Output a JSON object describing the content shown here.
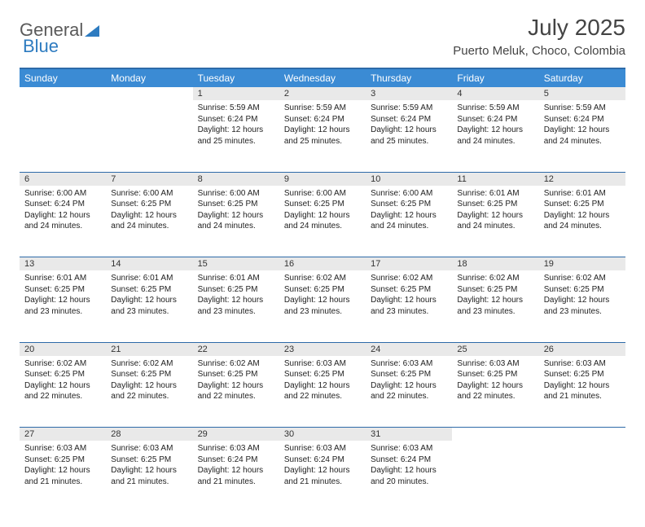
{
  "logo": {
    "text_gray": "General",
    "text_blue": "Blue"
  },
  "title": "July 2025",
  "location": "Puerto Meluk, Choco, Colombia",
  "colors": {
    "header_bg": "#3b8bd4",
    "header_border": "#2d6aa8",
    "daynum_bg": "#e9e9e9",
    "text": "#222222",
    "logo_gray": "#5a5a5a",
    "logo_blue": "#2d7bc0"
  },
  "weekdays": [
    "Sunday",
    "Monday",
    "Tuesday",
    "Wednesday",
    "Thursday",
    "Friday",
    "Saturday"
  ],
  "weeks": [
    [
      null,
      null,
      {
        "n": "1",
        "sunrise": "5:59 AM",
        "sunset": "6:24 PM",
        "daylight": "12 hours and 25 minutes."
      },
      {
        "n": "2",
        "sunrise": "5:59 AM",
        "sunset": "6:24 PM",
        "daylight": "12 hours and 25 minutes."
      },
      {
        "n": "3",
        "sunrise": "5:59 AM",
        "sunset": "6:24 PM",
        "daylight": "12 hours and 25 minutes."
      },
      {
        "n": "4",
        "sunrise": "5:59 AM",
        "sunset": "6:24 PM",
        "daylight": "12 hours and 24 minutes."
      },
      {
        "n": "5",
        "sunrise": "5:59 AM",
        "sunset": "6:24 PM",
        "daylight": "12 hours and 24 minutes."
      }
    ],
    [
      {
        "n": "6",
        "sunrise": "6:00 AM",
        "sunset": "6:24 PM",
        "daylight": "12 hours and 24 minutes."
      },
      {
        "n": "7",
        "sunrise": "6:00 AM",
        "sunset": "6:25 PM",
        "daylight": "12 hours and 24 minutes."
      },
      {
        "n": "8",
        "sunrise": "6:00 AM",
        "sunset": "6:25 PM",
        "daylight": "12 hours and 24 minutes."
      },
      {
        "n": "9",
        "sunrise": "6:00 AM",
        "sunset": "6:25 PM",
        "daylight": "12 hours and 24 minutes."
      },
      {
        "n": "10",
        "sunrise": "6:00 AM",
        "sunset": "6:25 PM",
        "daylight": "12 hours and 24 minutes."
      },
      {
        "n": "11",
        "sunrise": "6:01 AM",
        "sunset": "6:25 PM",
        "daylight": "12 hours and 24 minutes."
      },
      {
        "n": "12",
        "sunrise": "6:01 AM",
        "sunset": "6:25 PM",
        "daylight": "12 hours and 24 minutes."
      }
    ],
    [
      {
        "n": "13",
        "sunrise": "6:01 AM",
        "sunset": "6:25 PM",
        "daylight": "12 hours and 23 minutes."
      },
      {
        "n": "14",
        "sunrise": "6:01 AM",
        "sunset": "6:25 PM",
        "daylight": "12 hours and 23 minutes."
      },
      {
        "n": "15",
        "sunrise": "6:01 AM",
        "sunset": "6:25 PM",
        "daylight": "12 hours and 23 minutes."
      },
      {
        "n": "16",
        "sunrise": "6:02 AM",
        "sunset": "6:25 PM",
        "daylight": "12 hours and 23 minutes."
      },
      {
        "n": "17",
        "sunrise": "6:02 AM",
        "sunset": "6:25 PM",
        "daylight": "12 hours and 23 minutes."
      },
      {
        "n": "18",
        "sunrise": "6:02 AM",
        "sunset": "6:25 PM",
        "daylight": "12 hours and 23 minutes."
      },
      {
        "n": "19",
        "sunrise": "6:02 AM",
        "sunset": "6:25 PM",
        "daylight": "12 hours and 23 minutes."
      }
    ],
    [
      {
        "n": "20",
        "sunrise": "6:02 AM",
        "sunset": "6:25 PM",
        "daylight": "12 hours and 22 minutes."
      },
      {
        "n": "21",
        "sunrise": "6:02 AM",
        "sunset": "6:25 PM",
        "daylight": "12 hours and 22 minutes."
      },
      {
        "n": "22",
        "sunrise": "6:02 AM",
        "sunset": "6:25 PM",
        "daylight": "12 hours and 22 minutes."
      },
      {
        "n": "23",
        "sunrise": "6:03 AM",
        "sunset": "6:25 PM",
        "daylight": "12 hours and 22 minutes."
      },
      {
        "n": "24",
        "sunrise": "6:03 AM",
        "sunset": "6:25 PM",
        "daylight": "12 hours and 22 minutes."
      },
      {
        "n": "25",
        "sunrise": "6:03 AM",
        "sunset": "6:25 PM",
        "daylight": "12 hours and 22 minutes."
      },
      {
        "n": "26",
        "sunrise": "6:03 AM",
        "sunset": "6:25 PM",
        "daylight": "12 hours and 21 minutes."
      }
    ],
    [
      {
        "n": "27",
        "sunrise": "6:03 AM",
        "sunset": "6:25 PM",
        "daylight": "12 hours and 21 minutes."
      },
      {
        "n": "28",
        "sunrise": "6:03 AM",
        "sunset": "6:25 PM",
        "daylight": "12 hours and 21 minutes."
      },
      {
        "n": "29",
        "sunrise": "6:03 AM",
        "sunset": "6:24 PM",
        "daylight": "12 hours and 21 minutes."
      },
      {
        "n": "30",
        "sunrise": "6:03 AM",
        "sunset": "6:24 PM",
        "daylight": "12 hours and 21 minutes."
      },
      {
        "n": "31",
        "sunrise": "6:03 AM",
        "sunset": "6:24 PM",
        "daylight": "12 hours and 20 minutes."
      },
      null,
      null
    ]
  ],
  "labels": {
    "sunrise": "Sunrise:",
    "sunset": "Sunset:",
    "daylight": "Daylight:"
  }
}
